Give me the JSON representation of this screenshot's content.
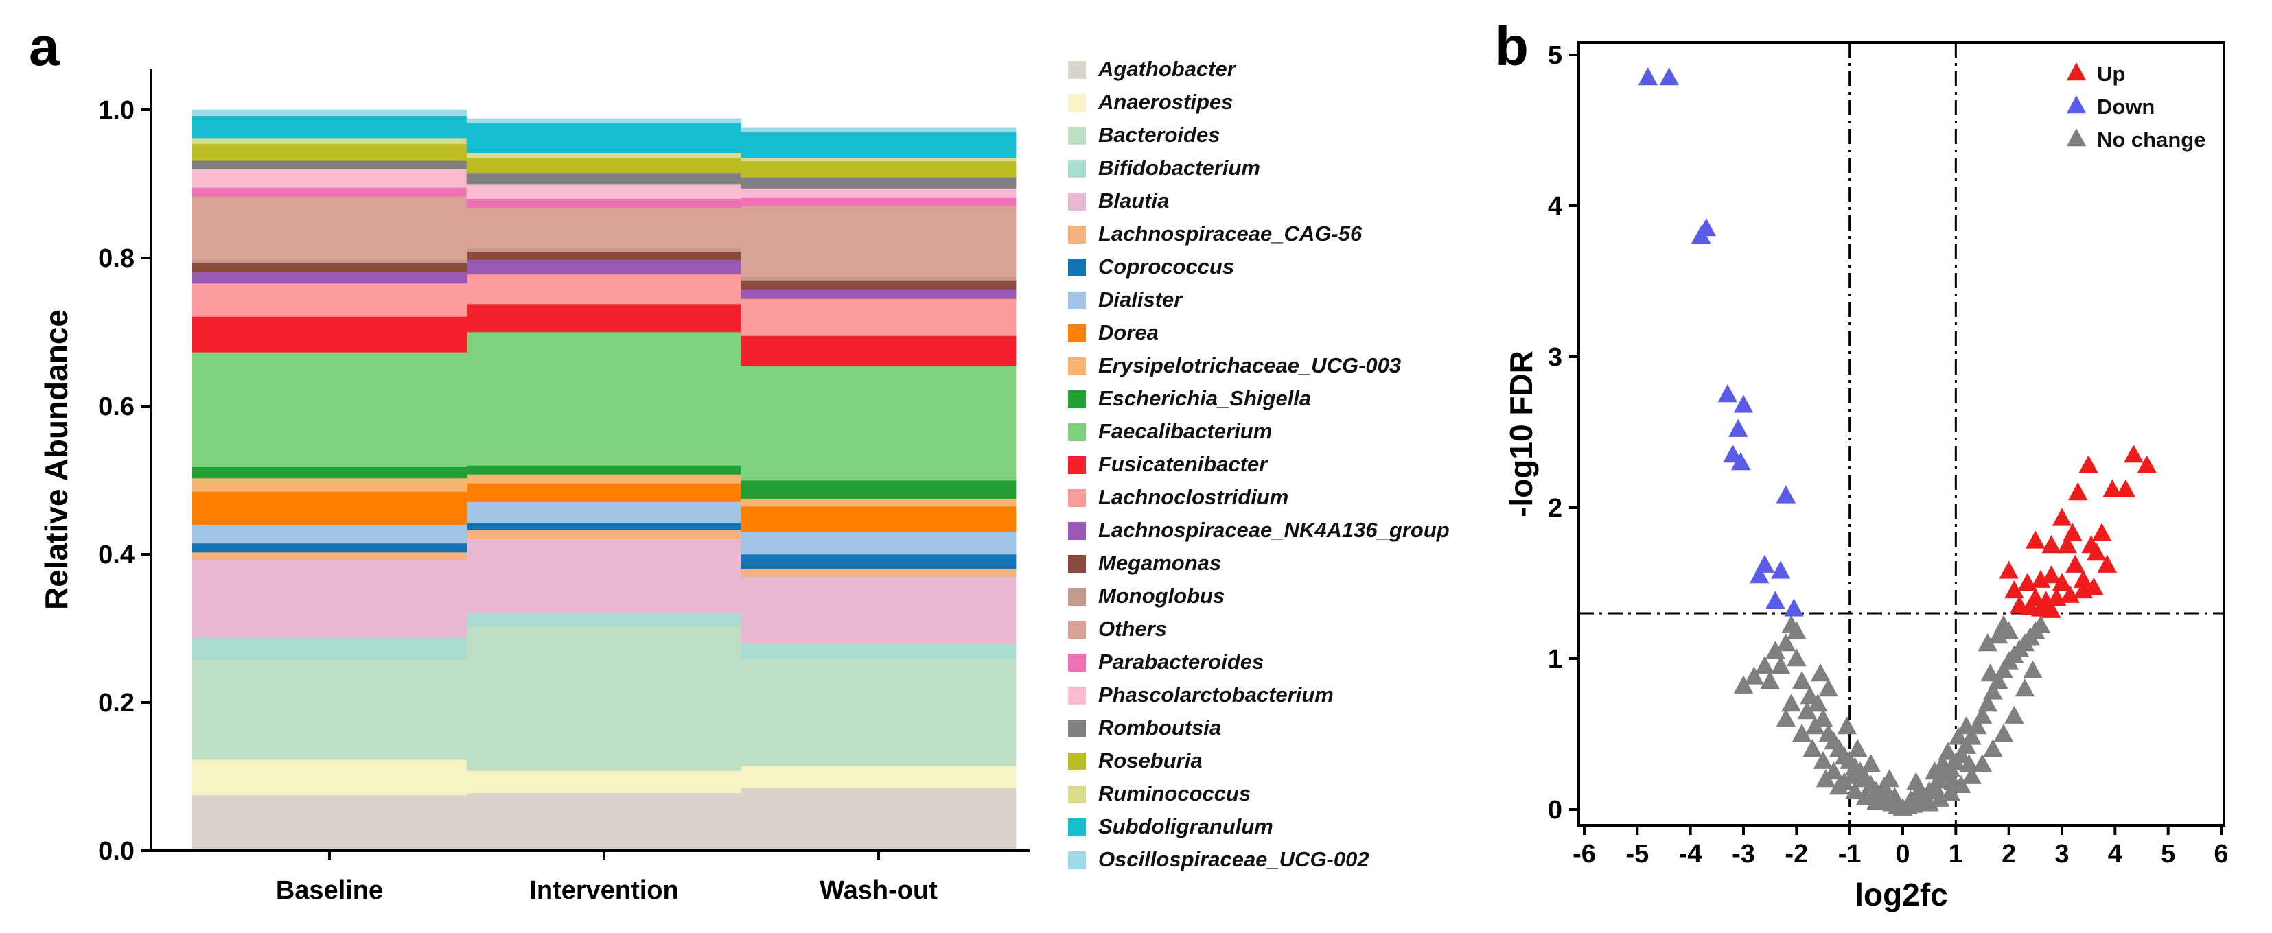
{
  "panels": {
    "a": "a",
    "b": "b"
  },
  "chart_data": [
    {
      "type": "area",
      "stacked": true,
      "ylabel": "Relative Abundance",
      "xlabel": "",
      "categories": [
        "Baseline",
        "Intervention",
        "Wash-out"
      ],
      "ylim": [
        0.0,
        1.0
      ],
      "yticks": [
        "0.0",
        "0.2",
        "0.4",
        "0.6",
        "0.8",
        "1.0"
      ],
      "legend_position": "right",
      "series": [
        {
          "name": "Agathobacter",
          "color": "#d9d3cb",
          "values": [
            0.075,
            0.078,
            0.085
          ]
        },
        {
          "name": "Anaerostipes",
          "color": "#f7f3c4",
          "values": [
            0.048,
            0.03,
            0.03
          ]
        },
        {
          "name": "Bacteroides",
          "color": "#bfdfc4",
          "values": [
            0.135,
            0.195,
            0.145
          ]
        },
        {
          "name": "Bifidobacterium",
          "color": "#a9ddd0",
          "values": [
            0.03,
            0.018,
            0.02
          ]
        },
        {
          "name": "Blautia",
          "color": "#e8b7d2",
          "values": [
            0.105,
            0.1,
            0.09
          ]
        },
        {
          "name": "Lachnospiraceae_CAG-56",
          "color": "#f4b27e",
          "values": [
            0.01,
            0.012,
            0.01
          ]
        },
        {
          "name": "Coprococcus",
          "color": "#1473b5",
          "values": [
            0.012,
            0.01,
            0.02
          ]
        },
        {
          "name": "Dialister",
          "color": "#9fc4e4",
          "values": [
            0.025,
            0.028,
            0.03
          ]
        },
        {
          "name": "Dorea",
          "color": "#ff7f00",
          "values": [
            0.045,
            0.025,
            0.035
          ]
        },
        {
          "name": "Erysipelotrichaceae_UCG-003",
          "color": "#f8b572",
          "values": [
            0.018,
            0.012,
            0.01
          ]
        },
        {
          "name": "Escherichia_Shigella",
          "color": "#22a035",
          "values": [
            0.015,
            0.012,
            0.025
          ]
        },
        {
          "name": "Faecalibacterium",
          "color": "#7fd17d",
          "values": [
            0.155,
            0.18,
            0.155
          ]
        },
        {
          "name": "Fusicatenibacter",
          "color": "#f4212c",
          "values": [
            0.048,
            0.038,
            0.04
          ]
        },
        {
          "name": "Lachnoclostridium",
          "color": "#fb9b9b",
          "values": [
            0.045,
            0.04,
            0.05
          ]
        },
        {
          "name": "Lachnospiraceae_NK4A136_group",
          "color": "#9b59b6",
          "values": [
            0.015,
            0.02,
            0.013
          ]
        },
        {
          "name": "Megamonas",
          "color": "#8b4a3c",
          "values": [
            0.012,
            0.01,
            0.012
          ]
        },
        {
          "name": "Monoglobus",
          "color": "#c49a8e",
          "values": [
            0.005,
            0.005,
            0.005
          ]
        },
        {
          "name": "Others",
          "color": "#d8a396",
          "values": [
            0.085,
            0.055,
            0.095
          ]
        },
        {
          "name": "Parabacteroides",
          "color": "#ee72b4",
          "values": [
            0.012,
            0.012,
            0.012
          ]
        },
        {
          "name": "Phascolarctobacterium",
          "color": "#f9bbd2",
          "values": [
            0.025,
            0.02,
            0.012
          ]
        },
        {
          "name": "Romboutsia",
          "color": "#808080",
          "values": [
            0.012,
            0.015,
            0.015
          ]
        },
        {
          "name": "Roseburia",
          "color": "#bcbd22",
          "values": [
            0.022,
            0.02,
            0.022
          ]
        },
        {
          "name": "Ruminococcus",
          "color": "#dbdb8d",
          "values": [
            0.008,
            0.007,
            0.004
          ]
        },
        {
          "name": "Subdoligranulum",
          "color": "#17becf",
          "values": [
            0.03,
            0.04,
            0.035
          ]
        },
        {
          "name": "Oscillospiraceae_UCG-002",
          "color": "#9edae5",
          "values": [
            0.008,
            0.006,
            0.006
          ]
        }
      ]
    },
    {
      "type": "scatter",
      "marker": "triangle",
      "xlabel": "log2fc",
      "ylabel": "-log10 FDR",
      "xlim": [
        -6,
        6
      ],
      "ylim": [
        -0.1,
        5.15
      ],
      "xticks": [
        "-6",
        "-5",
        "-4",
        "-3",
        "-2",
        "-1",
        "0",
        "1",
        "2",
        "3",
        "4",
        "5",
        "6"
      ],
      "yticks": [
        "0",
        "1",
        "2",
        "3",
        "4",
        "5"
      ],
      "thresholds": {
        "vertical": [
          -1,
          1
        ],
        "horizontal": 1.3
      },
      "legend_position": "top-right",
      "series": [
        {
          "name": "Up",
          "color": "#ee1c1c",
          "points": [
            [
              4.6,
              2.28
            ],
            [
              4.35,
              2.35
            ],
            [
              4.2,
              2.12
            ],
            [
              3.95,
              2.12
            ],
            [
              3.5,
              2.28
            ],
            [
              3.3,
              2.1
            ],
            [
              3.0,
              1.93
            ],
            [
              3.2,
              1.83
            ],
            [
              3.75,
              1.83
            ],
            [
              3.65,
              1.7
            ],
            [
              3.55,
              1.75
            ],
            [
              3.1,
              1.75
            ],
            [
              2.8,
              1.75
            ],
            [
              2.5,
              1.78
            ],
            [
              3.25,
              1.62
            ],
            [
              3.85,
              1.62
            ],
            [
              3.4,
              1.52
            ],
            [
              3.0,
              1.5
            ],
            [
              2.8,
              1.55
            ],
            [
              2.6,
              1.52
            ],
            [
              2.35,
              1.5
            ],
            [
              2.0,
              1.58
            ],
            [
              2.1,
              1.45
            ],
            [
              2.5,
              1.4
            ],
            [
              2.7,
              1.38
            ],
            [
              2.9,
              1.4
            ],
            [
              3.15,
              1.42
            ],
            [
              3.4,
              1.45
            ],
            [
              3.6,
              1.47
            ],
            [
              2.2,
              1.35
            ],
            [
              2.4,
              1.34
            ],
            [
              2.6,
              1.33
            ],
            [
              2.8,
              1.32
            ]
          ]
        },
        {
          "name": "Down",
          "color": "#5a5ce8",
          "points": [
            [
              -4.8,
              4.85
            ],
            [
              -4.4,
              4.85
            ],
            [
              -3.7,
              3.85
            ],
            [
              -3.8,
              3.8
            ],
            [
              -3.3,
              2.75
            ],
            [
              -3.0,
              2.68
            ],
            [
              -3.1,
              2.52
            ],
            [
              -3.2,
              2.35
            ],
            [
              -3.05,
              2.3
            ],
            [
              -2.2,
              2.08
            ],
            [
              -2.6,
              1.62
            ],
            [
              -2.7,
              1.55
            ],
            [
              -2.3,
              1.58
            ],
            [
              -2.4,
              1.38
            ],
            [
              -2.05,
              1.33
            ]
          ]
        },
        {
          "name": "No change",
          "color": "#7f7f7f",
          "points": [
            [
              -2.1,
              1.22
            ],
            [
              -2.2,
              1.1
            ],
            [
              -2.4,
              1.05
            ],
            [
              -2.6,
              0.95
            ],
            [
              -2.8,
              0.88
            ],
            [
              -3.0,
              0.82
            ],
            [
              -2.3,
              0.95
            ],
            [
              -2.5,
              0.85
            ],
            [
              -2.0,
              1.0
            ],
            [
              -1.9,
              0.85
            ],
            [
              -1.75,
              0.75
            ],
            [
              -1.6,
              0.7
            ],
            [
              -1.5,
              0.6
            ],
            [
              -1.8,
              0.65
            ],
            [
              -2.1,
              0.7
            ],
            [
              -1.65,
              0.55
            ],
            [
              -1.4,
              0.5
            ],
            [
              -1.3,
              0.45
            ],
            [
              -1.2,
              0.4
            ],
            [
              -1.1,
              0.35
            ],
            [
              -1.0,
              0.32
            ],
            [
              -0.9,
              0.28
            ],
            [
              -0.8,
              0.25
            ],
            [
              -0.7,
              0.2
            ],
            [
              -0.6,
              0.16
            ],
            [
              -0.5,
              0.12
            ],
            [
              -0.4,
              0.09
            ],
            [
              -0.3,
              0.06
            ],
            [
              -0.2,
              0.04
            ],
            [
              -0.1,
              0.02
            ],
            [
              0.0,
              0.01
            ],
            [
              0.1,
              0.02
            ],
            [
              0.2,
              0.03
            ],
            [
              0.3,
              0.05
            ],
            [
              0.4,
              0.08
            ],
            [
              0.5,
              0.12
            ],
            [
              0.6,
              0.15
            ],
            [
              0.7,
              0.19
            ],
            [
              0.8,
              0.23
            ],
            [
              0.9,
              0.27
            ],
            [
              1.0,
              0.31
            ],
            [
              1.1,
              0.36
            ],
            [
              1.2,
              0.42
            ],
            [
              1.3,
              0.48
            ],
            [
              1.4,
              0.55
            ],
            [
              1.5,
              0.62
            ],
            [
              1.6,
              0.7
            ],
            [
              1.7,
              0.78
            ],
            [
              1.8,
              0.85
            ],
            [
              1.9,
              0.92
            ],
            [
              2.0,
              0.98
            ],
            [
              2.1,
              1.02
            ],
            [
              2.2,
              1.06
            ],
            [
              2.3,
              1.1
            ],
            [
              2.4,
              1.14
            ],
            [
              2.5,
              1.18
            ],
            [
              2.6,
              1.22
            ],
            [
              1.6,
              1.1
            ],
            [
              1.8,
              1.15
            ],
            [
              2.0,
              1.18
            ],
            [
              1.9,
              1.22
            ],
            [
              -1.3,
              0.25
            ],
            [
              -1.1,
              0.18
            ],
            [
              -0.9,
              0.12
            ],
            [
              -0.7,
              0.08
            ],
            [
              -0.5,
              0.05
            ],
            [
              0.5,
              0.04
            ],
            [
              0.7,
              0.07
            ],
            [
              0.9,
              0.11
            ],
            [
              1.1,
              0.16
            ],
            [
              1.3,
              0.22
            ],
            [
              1.5,
              0.3
            ],
            [
              -1.5,
              0.32
            ],
            [
              -1.7,
              0.4
            ],
            [
              1.7,
              0.4
            ],
            [
              1.9,
              0.5
            ],
            [
              2.1,
              0.62
            ],
            [
              -1.9,
              0.5
            ],
            [
              -2.2,
              0.6
            ],
            [
              -1.45,
              0.2
            ],
            [
              -1.2,
              0.15
            ],
            [
              -0.95,
              0.22
            ],
            [
              0.95,
              0.18
            ],
            [
              1.25,
              0.3
            ],
            [
              -0.35,
              0.15
            ],
            [
              0.3,
              0.12
            ],
            [
              -0.15,
              0.08
            ],
            [
              0.15,
              0.06
            ],
            [
              2.3,
              0.8
            ],
            [
              2.45,
              0.92
            ],
            [
              1.65,
              0.9
            ],
            [
              -2.0,
              1.18
            ],
            [
              -1.4,
              0.8
            ],
            [
              -1.55,
              0.9
            ],
            [
              1.2,
              0.55
            ],
            [
              1.05,
              0.48
            ],
            [
              -1.05,
              0.55
            ],
            [
              -0.85,
              0.4
            ],
            [
              0.85,
              0.38
            ],
            [
              0.75,
              0.3
            ],
            [
              -0.6,
              0.3
            ],
            [
              0.6,
              0.25
            ],
            [
              -0.25,
              0.2
            ],
            [
              0.25,
              0.18
            ]
          ]
        }
      ]
    }
  ]
}
